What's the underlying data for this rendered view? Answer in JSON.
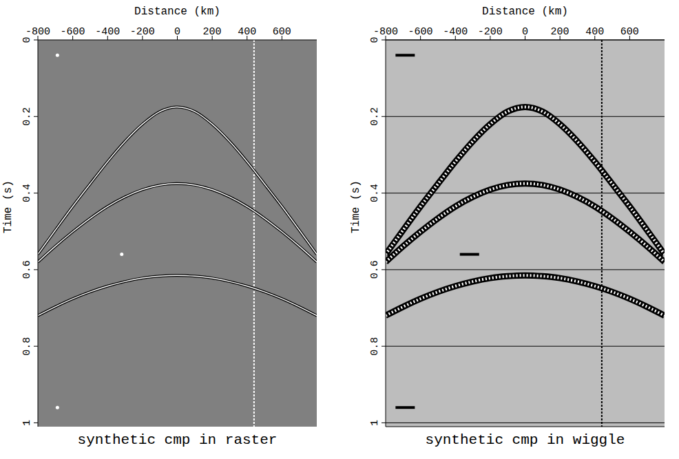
{
  "chart_data": [
    {
      "type": "line",
      "title": "synthetic cmp in raster",
      "x_label": "Distance (km)",
      "y_label": "Time (s)",
      "x": [
        -800,
        -700,
        -600,
        -500,
        -400,
        -300,
        -200,
        -100,
        0,
        100,
        200,
        300,
        400,
        500,
        600,
        700,
        800
      ],
      "series": [
        {
          "color": "#000000",
          "values": [
            0.56,
            0.497,
            0.435,
            0.376,
            0.318,
            0.265,
            0.22,
            0.187,
            0.175,
            0.187,
            0.22,
            0.265,
            0.318,
            0.376,
            0.435,
            0.497,
            0.56
          ]
        },
        {
          "color": "#000000",
          "values": [
            0.58,
            0.539,
            0.501,
            0.466,
            0.435,
            0.41,
            0.391,
            0.379,
            0.375,
            0.379,
            0.391,
            0.41,
            0.435,
            0.466,
            0.501,
            0.539,
            0.58
          ]
        },
        {
          "color": "#000000",
          "values": [
            0.72,
            0.697,
            0.676,
            0.658,
            0.643,
            0.631,
            0.622,
            0.617,
            0.615,
            0.617,
            0.622,
            0.631,
            0.643,
            0.658,
            0.676,
            0.697,
            0.72
          ]
        }
      ],
      "noise_trace_x": 440,
      "spikes": {
        "x": [
          -688,
          -319,
          -688
        ],
        "t": [
          0.04,
          0.56,
          0.96
        ]
      },
      "xlim": [
        -800,
        800
      ],
      "xticks": [
        -800,
        -600,
        -400,
        -200,
        0,
        200,
        400,
        600
      ],
      "ylim": [
        0,
        1.01
      ],
      "yticks": [
        0,
        0.2,
        0.4,
        0.6,
        0.8,
        1
      ],
      "grid": false
    },
    {
      "type": "line",
      "title": "synthetic cmp in wiggle",
      "x_label": "Distance (km)",
      "y_label": "Time (s)",
      "x": [
        -800,
        -700,
        -600,
        -500,
        -400,
        -300,
        -200,
        -100,
        0,
        100,
        200,
        300,
        400,
        500,
        600,
        700,
        800
      ],
      "series": [
        {
          "color": "#000000",
          "values": [
            0.56,
            0.497,
            0.435,
            0.376,
            0.318,
            0.265,
            0.22,
            0.187,
            0.175,
            0.187,
            0.22,
            0.265,
            0.318,
            0.376,
            0.435,
            0.497,
            0.56
          ]
        },
        {
          "color": "#000000",
          "values": [
            0.58,
            0.539,
            0.501,
            0.466,
            0.435,
            0.41,
            0.391,
            0.379,
            0.375,
            0.379,
            0.391,
            0.41,
            0.435,
            0.466,
            0.501,
            0.539,
            0.58
          ]
        },
        {
          "color": "#000000",
          "values": [
            0.72,
            0.697,
            0.676,
            0.658,
            0.643,
            0.631,
            0.622,
            0.617,
            0.615,
            0.617,
            0.622,
            0.631,
            0.643,
            0.658,
            0.676,
            0.697,
            0.72
          ]
        }
      ],
      "noise_trace_x": 440,
      "spikes": {
        "x": [
          -688,
          -319,
          -688
        ],
        "t": [
          0.04,
          0.56,
          0.96
        ]
      },
      "xlim": [
        -800,
        800
      ],
      "xticks": [
        -800,
        -600,
        -400,
        -200,
        0,
        200,
        400,
        600
      ],
      "ylim": [
        0,
        1.01
      ],
      "yticks": [
        0,
        0.2,
        0.4,
        0.6,
        0.8,
        1
      ],
      "grid": true
    }
  ]
}
